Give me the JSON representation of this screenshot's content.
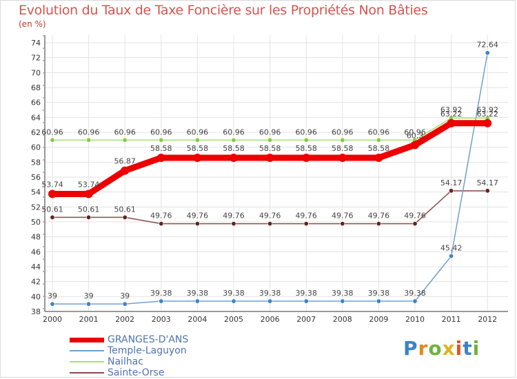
{
  "title": "Evolution du Taux de Taxe Foncière sur les Propriétés Non Bâties",
  "unit_label": "(en %)",
  "logo": {
    "text": "Proxiti"
  },
  "chart_data": {
    "type": "line",
    "title": "Evolution du Taux de Taxe Foncière sur les Propriétés Non Bâties",
    "ylabel": "(en %)",
    "xlabel": "",
    "ylim": [
      38,
      74
    ],
    "y_ticks": [
      38,
      40,
      42,
      44,
      46,
      48,
      50,
      52,
      54,
      56,
      58,
      60,
      62,
      64,
      66,
      68,
      70,
      72,
      74
    ],
    "categories": [
      "2000",
      "2001",
      "2002",
      "2003",
      "2004",
      "2005",
      "2006",
      "2007",
      "2008",
      "2009",
      "2010",
      "2011",
      "2012"
    ],
    "grid": true,
    "legend_position": "bottom-left",
    "series": [
      {
        "name": "GRANGES-D'ANS",
        "color": "#ee0000",
        "values": [
          53.74,
          53.74,
          56.87,
          58.58,
          58.58,
          58.58,
          58.58,
          58.58,
          58.58,
          58.58,
          60.3,
          63.22,
          63.22
        ],
        "labels": [
          "53.74",
          "53.74",
          "56.87",
          "58.58",
          "58.58",
          "58.58",
          "58.58",
          "58.58",
          "58.58",
          "58.58",
          "60.3",
          "63.22",
          "63.22"
        ]
      },
      {
        "name": "Temple-Laguyon",
        "color": "#6ea0d0",
        "marker_color": "#3b84c4",
        "values": [
          39,
          39,
          39,
          39.38,
          39.38,
          39.38,
          39.38,
          39.38,
          39.38,
          39.38,
          39.38,
          45.42,
          72.64
        ],
        "labels": [
          "39",
          "39",
          "39",
          "39.38",
          "39.38",
          "39.38",
          "39.38",
          "39.38",
          "39.38",
          "39.38",
          "39.38",
          "45.42",
          "72.64"
        ]
      },
      {
        "name": "Nailhac",
        "color": "#a6e06c",
        "marker_color": "#84cc3e",
        "values": [
          60.96,
          60.96,
          60.96,
          60.96,
          60.96,
          60.96,
          60.96,
          60.96,
          60.96,
          60.96,
          60.96,
          63.92,
          63.92
        ],
        "labels": [
          "60.96",
          "60.96",
          "60.96",
          "60.96",
          "60.96",
          "60.96",
          "60.96",
          "60.96",
          "60.96",
          "60.96",
          "60.96",
          "63.92",
          "63.92"
        ]
      },
      {
        "name": "Sainte-Orse",
        "color": "#8b4a4a",
        "marker_color": "#6b1f1f",
        "values": [
          50.61,
          50.61,
          50.61,
          49.76,
          49.76,
          49.76,
          49.76,
          49.76,
          49.76,
          49.76,
          49.76,
          54.17,
          54.17
        ],
        "labels": [
          "50.61",
          "50.61",
          "50.61",
          "49.76",
          "49.76",
          "49.76",
          "49.76",
          "49.76",
          "49.76",
          "49.76",
          "49.76",
          "54.17",
          "54.17"
        ]
      }
    ]
  }
}
